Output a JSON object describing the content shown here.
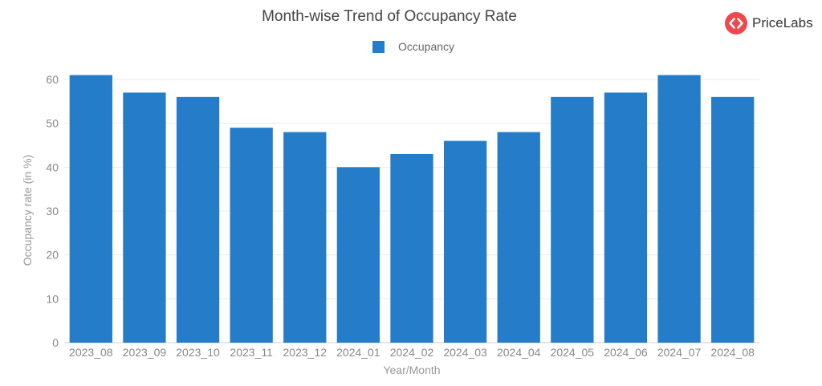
{
  "logo": {
    "text": "PriceLabs",
    "color": "#f0474c"
  },
  "chart_data": {
    "type": "bar",
    "title": "Month-wise Trend of Occupancy Rate",
    "xlabel": "Year/Month",
    "ylabel": "Occupancy rate (in %)",
    "ylim": [
      0,
      60
    ],
    "yticks": [
      0,
      10,
      20,
      30,
      40,
      50,
      60
    ],
    "grid": true,
    "legend_position": "top-center",
    "categories": [
      "2023_08",
      "2023_09",
      "2023_10",
      "2023_11",
      "2023_12",
      "2024_01",
      "2024_02",
      "2024_03",
      "2024_04",
      "2024_05",
      "2024_06",
      "2024_07",
      "2024_08"
    ],
    "series": [
      {
        "name": "Occupancy",
        "color": "#257dca",
        "values": [
          61,
          57,
          56,
          49,
          48,
          40,
          43,
          46,
          48,
          56,
          57,
          61,
          56
        ]
      }
    ]
  }
}
